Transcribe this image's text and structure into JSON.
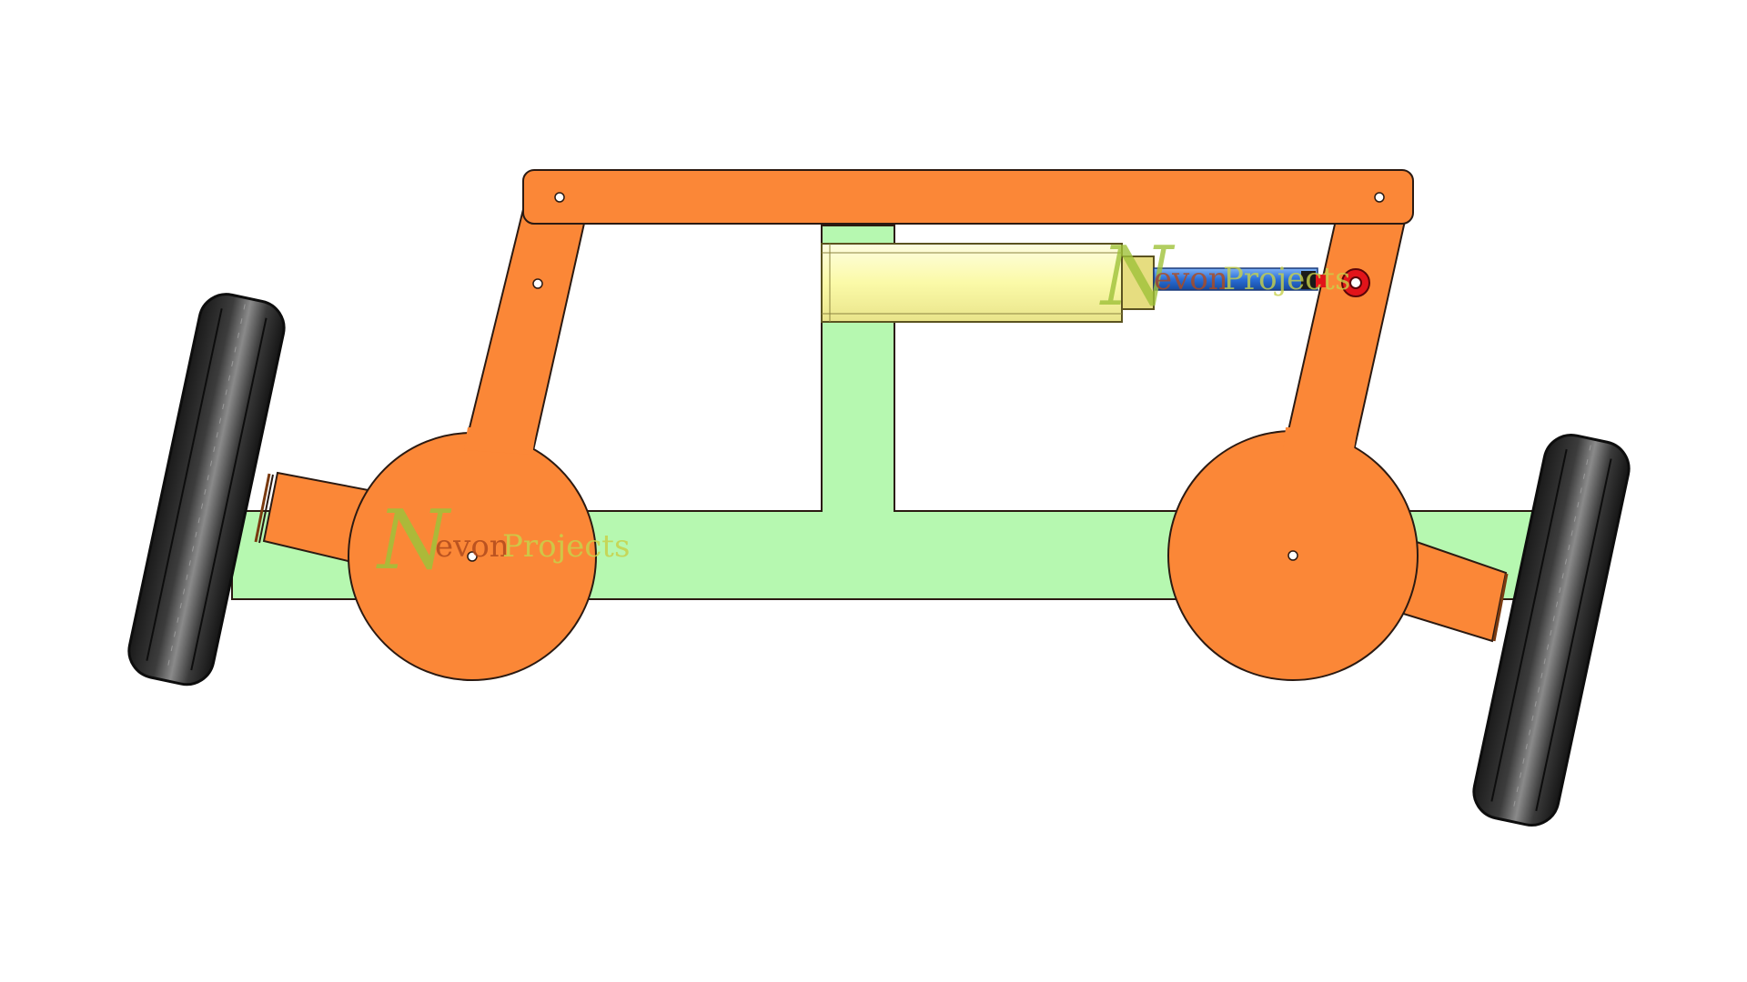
{
  "drawing": {
    "type": "steering-mechanism-schematic",
    "colors": {
      "background": "#ffffff",
      "chassis": "#b6f8b0",
      "linkage": "#fb8737",
      "outline": "#2b1a12",
      "actuator_barrel": "#fbfaa8",
      "actuator_collar": "#d8cf6a",
      "actuator_rod": "#2a6fd8",
      "rod_end_clevis": "#e2141a",
      "tire_dark": "#1c1c1c",
      "tire_light": "#7a7a7a",
      "pivot_hole": "#ffffff"
    },
    "parts": [
      "chassis-frame",
      "tie-rod",
      "left-steering-arm",
      "right-steering-arm",
      "left-hub-disc",
      "right-hub-disc",
      "left-stub-axle",
      "right-stub-axle",
      "linear-actuator",
      "left-wheel",
      "right-wheel"
    ]
  },
  "watermark": {
    "brand_mark": "N",
    "brand_first": "evon",
    "brand_second": "Projects",
    "color_mark": "#9fc23a",
    "color_first": "#b14a1c",
    "color_second": "#c8d24a"
  }
}
